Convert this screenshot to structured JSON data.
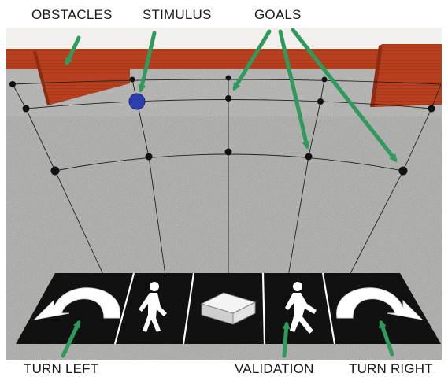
{
  "labels": {
    "obstacles": "OBSTACLES",
    "stimulus": "STIMULUS",
    "goals": "GOALS",
    "turn_left": "TURN LEFT",
    "validation": "VALIDATION",
    "turn_right": "TURN RIGHT"
  },
  "colors": {
    "arrow": "#2f9a5c",
    "stimulus": "#2c3fb0",
    "wall": "#b23a1d",
    "floor": "#9a9a98",
    "sky": "#f1f0ec"
  },
  "icons": [
    "turn-left-arrow-icon",
    "walking-person-icon",
    "box-icon",
    "walking-person-icon",
    "turn-right-arrow-icon"
  ]
}
